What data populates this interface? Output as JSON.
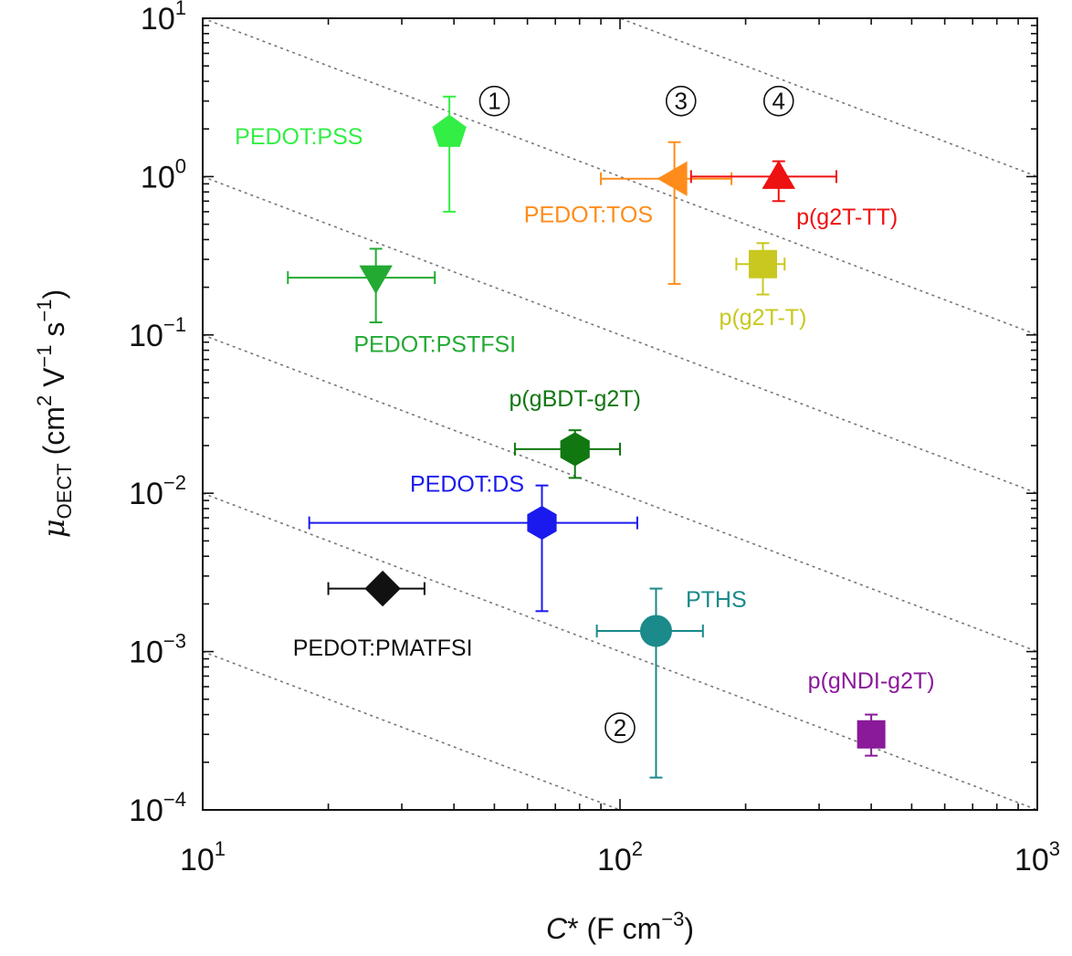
{
  "chart_data": {
    "type": "scatter",
    "xscale": "log",
    "yscale": "log",
    "xlim": [
      10,
      1000
    ],
    "ylim": [
      0.0001,
      10
    ],
    "xlabel": "C* (F cm⁻³)",
    "ylabel": "μOECT (cm² V⁻¹ s⁻¹)",
    "x_ticks": [
      {
        "value": 10,
        "base": "10",
        "exp": "1"
      },
      {
        "value": 100,
        "base": "10",
        "exp": "2"
      },
      {
        "value": 1000,
        "base": "10",
        "exp": "3"
      }
    ],
    "y_ticks": [
      {
        "value": 10,
        "base": "10",
        "exp": "1"
      },
      {
        "value": 1,
        "base": "10",
        "exp": "0"
      },
      {
        "value": 0.1,
        "base": "10",
        "exp": "−1"
      },
      {
        "value": 0.01,
        "base": "10",
        "exp": "−2"
      },
      {
        "value": 0.001,
        "base": "10",
        "exp": "−3"
      },
      {
        "value": 0.0001,
        "base": "10",
        "exp": "−4"
      }
    ],
    "grid": false,
    "guide_lines": [
      {
        "slope": -1,
        "x": 10,
        "y": 0.001
      },
      {
        "slope": -1,
        "x": 10,
        "y": 0.01
      },
      {
        "slope": -1,
        "x": 10,
        "y": 0.1
      },
      {
        "slope": -1,
        "x": 10,
        "y": 1
      },
      {
        "slope": -1,
        "x": 10,
        "y": 10
      },
      {
        "slope": -1,
        "x": 100,
        "y": 10
      }
    ],
    "region_annotations": [
      {
        "text": "①",
        "x": 50,
        "y": 3.0
      },
      {
        "text": "③",
        "x": 140,
        "y": 3.0
      },
      {
        "text": "④",
        "x": 240,
        "y": 3.0
      },
      {
        "text": "②",
        "x": 100,
        "y": 0.00033
      }
    ],
    "series": [
      {
        "name": "PEDOT:PSS",
        "color": "#33ee44",
        "marker": "pentagon",
        "x": 39,
        "y": 1.9,
        "xerr": null,
        "yerr": [
          0.6,
          3.2
        ],
        "label_pos": {
          "x": 17,
          "y": 1.8
        }
      },
      {
        "name": "PEDOT:TOS",
        "color": "#ff8c1a",
        "marker": "triangle-left",
        "x": 135,
        "y": 0.97,
        "xerr": [
          90,
          185
        ],
        "yerr": [
          0.21,
          1.65
        ],
        "label_pos": {
          "x": 84,
          "y": 0.58
        }
      },
      {
        "name": "p(g2T-TT)",
        "color": "#ee1111",
        "marker": "triangle-up",
        "x": 240,
        "y": 1.0,
        "xerr": [
          148,
          330
        ],
        "yerr": [
          0.7,
          1.25
        ],
        "label_pos": {
          "x": 350,
          "y": 0.56
        }
      },
      {
        "name": "p(g2T-T)",
        "color": "#c8c820",
        "marker": "square",
        "x": 220,
        "y": 0.28,
        "xerr": [
          190,
          248
        ],
        "yerr": [
          0.18,
          0.38
        ],
        "label_pos": {
          "x": 220,
          "y": 0.13
        }
      },
      {
        "name": "PEDOT:PSTFSI",
        "color": "#22aa33",
        "marker": "triangle-down",
        "x": 26,
        "y": 0.23,
        "xerr": [
          16,
          36
        ],
        "yerr": [
          0.12,
          0.35
        ],
        "label_pos": {
          "x": 36,
          "y": 0.088
        }
      },
      {
        "name": "p(gBDT-g2T)",
        "color": "#117711",
        "marker": "hexagon",
        "x": 78,
        "y": 0.019,
        "xerr": [
          56,
          100
        ],
        "yerr": [
          0.0125,
          0.025
        ],
        "label_pos": {
          "x": 78,
          "y": 0.04
        }
      },
      {
        "name": "PEDOT:DS",
        "color": "#1a1aee",
        "marker": "hexagon",
        "x": 65,
        "y": 0.0065,
        "xerr": [
          18,
          110
        ],
        "yerr": [
          0.0018,
          0.0112
        ],
        "label_pos": {
          "x": 43,
          "y": 0.0115
        }
      },
      {
        "name": "PEDOT:PMATFSI",
        "color": "#111111",
        "marker": "diamond",
        "x": 27,
        "y": 0.0025,
        "xerr": [
          20,
          34
        ],
        "yerr": null,
        "label_pos": {
          "x": 27,
          "y": 0.00106
        }
      },
      {
        "name": "PTHS",
        "color": "#1a8a8a",
        "marker": "circle",
        "x": 122,
        "y": 0.00135,
        "xerr": [
          88,
          158
        ],
        "yerr": [
          0.00016,
          0.0025
        ],
        "label_pos": {
          "x": 170,
          "y": 0.00215
        }
      },
      {
        "name": "p(gNDI-g2T)",
        "color": "#8a1a9a",
        "marker": "square",
        "x": 400,
        "y": 0.0003,
        "xerr": null,
        "yerr": [
          0.00022,
          0.0004
        ],
        "label_pos": {
          "x": 400,
          "y": 0.00066
        }
      }
    ]
  }
}
